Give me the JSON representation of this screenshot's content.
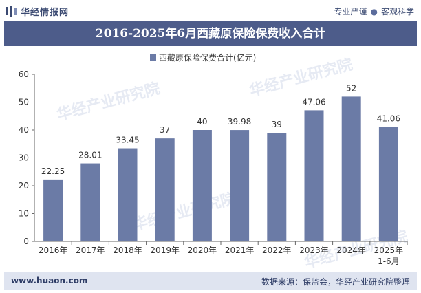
{
  "header": {
    "brand": "华经情报网",
    "tag1": "专业严谨",
    "tag2": "客观科学"
  },
  "title": "2016-2025年6月西藏原保险保费收入合计",
  "footer": {
    "website": "www.huaon.com",
    "source": "数据来源：保监会，华经产业研究院整理"
  },
  "watermark": "华经产业研究院",
  "colors": {
    "bar": "#6b7ba6",
    "title_bg": "#4d5c8a",
    "footer_bg": "#dfe4f0"
  },
  "chart_data": {
    "type": "bar",
    "categories": [
      "2016年",
      "2017年",
      "2018年",
      "2019年",
      "2020年",
      "2021年",
      "2022年",
      "2023年",
      "2024年",
      "2025年\n1-6月"
    ],
    "series": [
      {
        "name": "西藏原保险保费合计(亿元)",
        "values": [
          22.25,
          28.01,
          33.45,
          37,
          40,
          39.98,
          39,
          47.06,
          52,
          41.06
        ]
      }
    ],
    "value_labels": [
      "22.25",
      "28.01",
      "33.45",
      "37",
      "40",
      "39.98",
      "39",
      "47.06",
      "52",
      "41.06"
    ],
    "y_ticks": [
      "0",
      "10",
      "20",
      "30",
      "40",
      "50",
      "60"
    ],
    "ylim": [
      0,
      60
    ],
    "legend_position": "top-center",
    "grid": false
  }
}
